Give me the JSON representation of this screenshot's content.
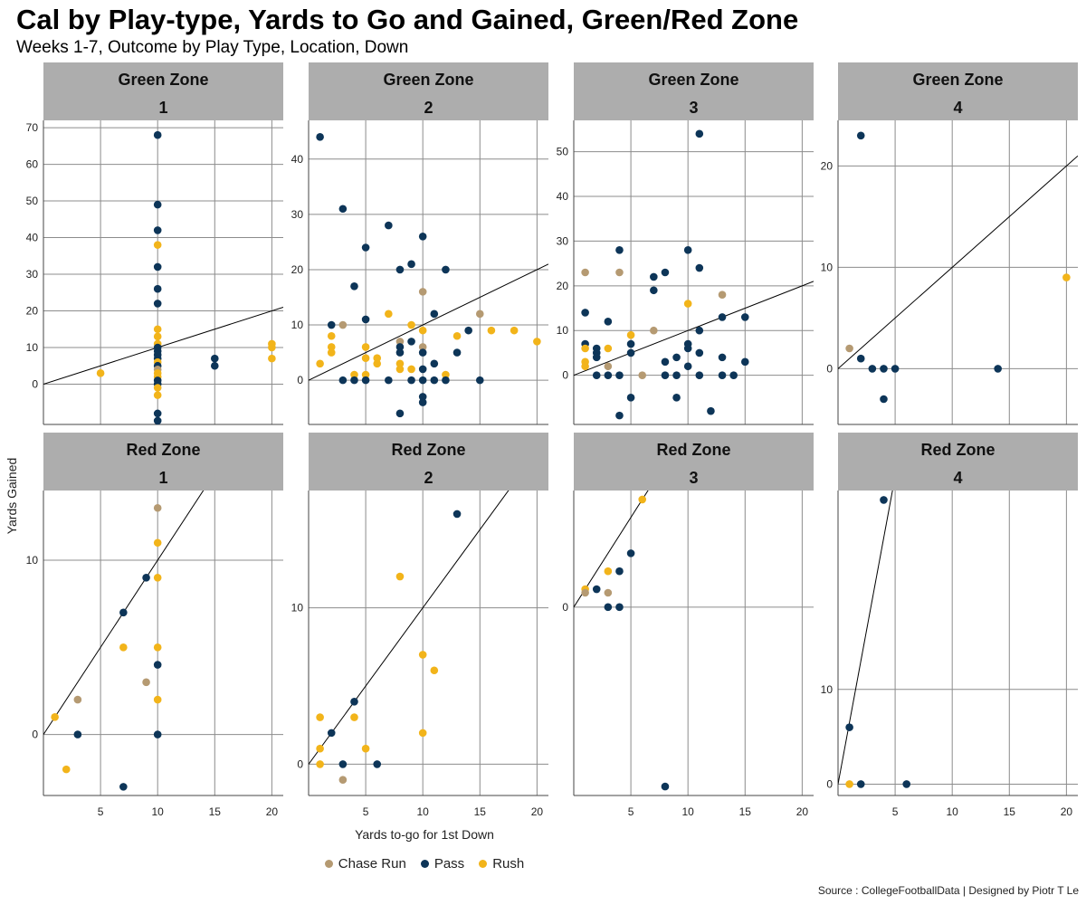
{
  "title": "Cal by Play-type, Yards to Go and Gained, Green/Red Zone",
  "subtitle": "Weeks 1-7, Outcome by Play Type, Location, Down",
  "source": "Source : CollegeFootballData | Designed by Piotr T Le",
  "colors": {
    "Chase Run": "#b59a72",
    "Pass": "#0d3558",
    "Rush": "#f2b41a",
    "strip": "#adadad",
    "grid": "#8c8c8c"
  },
  "legend": [
    {
      "name": "Chase Run",
      "color": "#b59a72"
    },
    {
      "name": "Pass",
      "color": "#0d3558"
    },
    {
      "name": "Rush",
      "color": "#f2b41a"
    }
  ],
  "chart_data": {
    "type": "scatter",
    "title": "Cal by Play-type, Yards to Go and Gained, Green/Red Zone",
    "subtitle": "Weeks 1-7, Outcome by Play Type, Location, Down",
    "xlabel": "Yards to-go for 1st Down",
    "ylabel": "Yards Gained",
    "legend_position": "bottom",
    "series_names": [
      "Chase Run",
      "Pass",
      "Rush"
    ],
    "x_ticks": [
      5,
      10,
      15,
      20
    ],
    "xlim": [
      0,
      21
    ],
    "panels": [
      {
        "zone": "Green Zone",
        "down": "1",
        "ylim": [
          -11,
          72
        ],
        "y_ticks": [
          0,
          10,
          20,
          30,
          40,
          50,
          60,
          70
        ],
        "fit": [
          0,
          1
        ],
        "points": [
          [
            10,
            68,
            "Pass"
          ],
          [
            10,
            49,
            "Pass"
          ],
          [
            10,
            42,
            "Pass"
          ],
          [
            10,
            32,
            "Pass"
          ],
          [
            10,
            26,
            "Pass"
          ],
          [
            10,
            22,
            "Pass"
          ],
          [
            10,
            38,
            "Rush"
          ],
          [
            10,
            15,
            "Rush"
          ],
          [
            10,
            13,
            "Rush"
          ],
          [
            10,
            11,
            "Rush"
          ],
          [
            10,
            10,
            "Pass"
          ],
          [
            10,
            9,
            "Pass"
          ],
          [
            10,
            8,
            "Pass"
          ],
          [
            10,
            7,
            "Pass"
          ],
          [
            10,
            6,
            "Rush"
          ],
          [
            10,
            5,
            "Pass"
          ],
          [
            10,
            4,
            "Chase Run"
          ],
          [
            10,
            3,
            "Rush"
          ],
          [
            10,
            2,
            "Rush"
          ],
          [
            10,
            1,
            "Pass"
          ],
          [
            10,
            0,
            "Pass"
          ],
          [
            10,
            -1,
            "Rush"
          ],
          [
            10,
            -3,
            "Rush"
          ],
          [
            10,
            -8,
            "Pass"
          ],
          [
            10,
            -10,
            "Pass"
          ],
          [
            5,
            3,
            "Rush"
          ],
          [
            15,
            7,
            "Pass"
          ],
          [
            15,
            5,
            "Pass"
          ],
          [
            20,
            11,
            "Rush"
          ],
          [
            20,
            10,
            "Rush"
          ],
          [
            20,
            7,
            "Rush"
          ]
        ]
      },
      {
        "zone": "Green Zone",
        "down": "2",
        "ylim": [
          -8,
          47
        ],
        "y_ticks": [
          0,
          10,
          20,
          30,
          40
        ],
        "fit": [
          0,
          1
        ],
        "points": [
          [
            1,
            44,
            "Pass"
          ],
          [
            3,
            31,
            "Pass"
          ],
          [
            7,
            28,
            "Pass"
          ],
          [
            5,
            24,
            "Pass"
          ],
          [
            10,
            26,
            "Pass"
          ],
          [
            8,
            20,
            "Pass"
          ],
          [
            9,
            21,
            "Pass"
          ],
          [
            12,
            20,
            "Pass"
          ],
          [
            4,
            17,
            "Pass"
          ],
          [
            10,
            16,
            "Chase Run"
          ],
          [
            15,
            12,
            "Chase Run"
          ],
          [
            11,
            12,
            "Pass"
          ],
          [
            7,
            12,
            "Rush"
          ],
          [
            5,
            11,
            "Pass"
          ],
          [
            2,
            10,
            "Pass"
          ],
          [
            3,
            10,
            "Chase Run"
          ],
          [
            9,
            10,
            "Rush"
          ],
          [
            10,
            9,
            "Rush"
          ],
          [
            14,
            9,
            "Pass"
          ],
          [
            16,
            9,
            "Rush"
          ],
          [
            18,
            9,
            "Rush"
          ],
          [
            2,
            8,
            "Rush"
          ],
          [
            13,
            8,
            "Rush"
          ],
          [
            8,
            7,
            "Chase Run"
          ],
          [
            9,
            7,
            "Pass"
          ],
          [
            20,
            7,
            "Rush"
          ],
          [
            2,
            6,
            "Rush"
          ],
          [
            5,
            6,
            "Rush"
          ],
          [
            8,
            6,
            "Pass"
          ],
          [
            10,
            6,
            "Chase Run"
          ],
          [
            2,
            5,
            "Rush"
          ],
          [
            8,
            5,
            "Pass"
          ],
          [
            10,
            5,
            "Pass"
          ],
          [
            13,
            5,
            "Pass"
          ],
          [
            5,
            4,
            "Rush"
          ],
          [
            6,
            4,
            "Rush"
          ],
          [
            6,
            3,
            "Rush"
          ],
          [
            8,
            3,
            "Rush"
          ],
          [
            11,
            3,
            "Pass"
          ],
          [
            1,
            3,
            "Rush"
          ],
          [
            8,
            2,
            "Rush"
          ],
          [
            9,
            2,
            "Rush"
          ],
          [
            10,
            2,
            "Pass"
          ],
          [
            4,
            1,
            "Rush"
          ],
          [
            5,
            1,
            "Rush"
          ],
          [
            12,
            1,
            "Rush"
          ],
          [
            3,
            0,
            "Pass"
          ],
          [
            4,
            0,
            "Pass"
          ],
          [
            5,
            0,
            "Pass"
          ],
          [
            7,
            0,
            "Pass"
          ],
          [
            9,
            0,
            "Pass"
          ],
          [
            10,
            0,
            "Pass"
          ],
          [
            11,
            0,
            "Pass"
          ],
          [
            12,
            0,
            "Pass"
          ],
          [
            15,
            0,
            "Pass"
          ],
          [
            10,
            -3,
            "Pass"
          ],
          [
            10,
            -4,
            "Pass"
          ],
          [
            8,
            -6,
            "Pass"
          ]
        ]
      },
      {
        "zone": "Green Zone",
        "down": "3",
        "ylim": [
          -11,
          57
        ],
        "y_ticks": [
          0,
          10,
          20,
          30,
          40,
          50
        ],
        "fit": [
          0,
          1
        ],
        "points": [
          [
            11,
            54,
            "Pass"
          ],
          [
            4,
            28,
            "Pass"
          ],
          [
            10,
            28,
            "Pass"
          ],
          [
            1,
            23,
            "Chase Run"
          ],
          [
            4,
            23,
            "Chase Run"
          ],
          [
            8,
            23,
            "Pass"
          ],
          [
            11,
            24,
            "Pass"
          ],
          [
            7,
            22,
            "Pass"
          ],
          [
            7,
            19,
            "Pass"
          ],
          [
            13,
            18,
            "Chase Run"
          ],
          [
            10,
            16,
            "Rush"
          ],
          [
            1,
            14,
            "Pass"
          ],
          [
            3,
            12,
            "Pass"
          ],
          [
            13,
            13,
            "Pass"
          ],
          [
            15,
            13,
            "Pass"
          ],
          [
            7,
            10,
            "Chase Run"
          ],
          [
            11,
            10,
            "Pass"
          ],
          [
            5,
            9,
            "Rush"
          ],
          [
            1,
            7,
            "Pass"
          ],
          [
            5,
            7,
            "Pass"
          ],
          [
            10,
            7,
            "Pass"
          ],
          [
            2,
            6,
            "Pass"
          ],
          [
            1,
            6,
            "Rush"
          ],
          [
            3,
            6,
            "Rush"
          ],
          [
            10,
            6,
            "Pass"
          ],
          [
            2,
            5,
            "Pass"
          ],
          [
            5,
            5,
            "Pass"
          ],
          [
            11,
            5,
            "Pass"
          ],
          [
            2,
            4,
            "Pass"
          ],
          [
            9,
            4,
            "Pass"
          ],
          [
            13,
            4,
            "Pass"
          ],
          [
            1,
            3,
            "Rush"
          ],
          [
            8,
            3,
            "Pass"
          ],
          [
            15,
            3,
            "Pass"
          ],
          [
            1,
            2,
            "Rush"
          ],
          [
            3,
            2,
            "Chase Run"
          ],
          [
            10,
            2,
            "Pass"
          ],
          [
            2,
            0,
            "Pass"
          ],
          [
            3,
            0,
            "Pass"
          ],
          [
            4,
            0,
            "Pass"
          ],
          [
            6,
            0,
            "Chase Run"
          ],
          [
            8,
            0,
            "Pass"
          ],
          [
            9,
            0,
            "Pass"
          ],
          [
            11,
            0,
            "Pass"
          ],
          [
            13,
            0,
            "Pass"
          ],
          [
            14,
            0,
            "Pass"
          ],
          [
            5,
            -5,
            "Pass"
          ],
          [
            9,
            -5,
            "Pass"
          ],
          [
            12,
            -8,
            "Pass"
          ],
          [
            4,
            -9,
            "Pass"
          ]
        ]
      },
      {
        "zone": "Green Zone",
        "down": "4",
        "ylim": [
          -5.5,
          24.5
        ],
        "y_ticks": [
          0,
          10,
          20
        ],
        "fit": [
          0,
          1
        ],
        "points": [
          [
            2,
            23,
            "Pass"
          ],
          [
            1,
            2,
            "Chase Run"
          ],
          [
            2,
            1,
            "Pass"
          ],
          [
            3,
            0,
            "Pass"
          ],
          [
            4,
            0,
            "Pass"
          ],
          [
            5,
            0,
            "Pass"
          ],
          [
            14,
            0,
            "Pass"
          ],
          [
            4,
            -3,
            "Pass"
          ],
          [
            20,
            9,
            "Rush"
          ]
        ]
      },
      {
        "zone": "Red Zone",
        "down": "1",
        "ylim": [
          -3.5,
          14
        ],
        "y_ticks": [
          0,
          10
        ],
        "fit": [
          0,
          1
        ],
        "points": [
          [
            10,
            13,
            "Chase Run"
          ],
          [
            10,
            11,
            "Rush"
          ],
          [
            9,
            9,
            "Pass"
          ],
          [
            10,
            9,
            "Rush"
          ],
          [
            7,
            7,
            "Pass"
          ],
          [
            7,
            5,
            "Rush"
          ],
          [
            10,
            5,
            "Rush"
          ],
          [
            10,
            4,
            "Pass"
          ],
          [
            9,
            3,
            "Chase Run"
          ],
          [
            10,
            2,
            "Rush"
          ],
          [
            3,
            2,
            "Chase Run"
          ],
          [
            1,
            1,
            "Rush"
          ],
          [
            3,
            0,
            "Pass"
          ],
          [
            10,
            0,
            "Pass"
          ],
          [
            2,
            -2,
            "Rush"
          ],
          [
            7,
            -3,
            "Pass"
          ]
        ]
      },
      {
        "zone": "Red Zone",
        "down": "2",
        "ylim": [
          -2,
          17.5
        ],
        "y_ticks": [
          0,
          10
        ],
        "fit": [
          0,
          1
        ],
        "points": [
          [
            13,
            16,
            "Pass"
          ],
          [
            8,
            12,
            "Rush"
          ],
          [
            10,
            7,
            "Rush"
          ],
          [
            11,
            6,
            "Rush"
          ],
          [
            4,
            4,
            "Pass"
          ],
          [
            1,
            3,
            "Rush"
          ],
          [
            4,
            3,
            "Rush"
          ],
          [
            2,
            2,
            "Pass"
          ],
          [
            10,
            2,
            "Rush"
          ],
          [
            1,
            1,
            "Rush"
          ],
          [
            5,
            1,
            "Rush"
          ],
          [
            1,
            0,
            "Rush"
          ],
          [
            3,
            0,
            "Pass"
          ],
          [
            6,
            0,
            "Pass"
          ],
          [
            3,
            -1,
            "Chase Run"
          ]
        ]
      },
      {
        "zone": "Red Zone",
        "down": "3",
        "ylim": [
          -10.5,
          6.5
        ],
        "y_ticks": [
          0
        ],
        "fit": [
          0,
          1
        ],
        "points": [
          [
            6,
            6,
            "Rush"
          ],
          [
            5,
            3,
            "Pass"
          ],
          [
            3,
            2,
            "Rush"
          ],
          [
            4,
            2,
            "Pass"
          ],
          [
            1,
            1,
            "Rush"
          ],
          [
            2,
            1,
            "Pass"
          ],
          [
            1,
            0.8,
            "Chase Run"
          ],
          [
            3,
            0.8,
            "Chase Run"
          ],
          [
            3,
            0,
            "Pass"
          ],
          [
            4,
            0,
            "Pass"
          ],
          [
            8,
            -10,
            "Pass"
          ]
        ]
      },
      {
        "zone": "Red Zone",
        "down": "4",
        "ylim": [
          -1.2,
          31
        ],
        "y_ticks": [
          0,
          10
        ],
        "fit": [
          0,
          6.5
        ],
        "points": [
          [
            4,
            30,
            "Pass"
          ],
          [
            1,
            6,
            "Pass"
          ],
          [
            1,
            0,
            "Rush"
          ],
          [
            2,
            0,
            "Pass"
          ],
          [
            6,
            0,
            "Pass"
          ]
        ]
      }
    ]
  }
}
